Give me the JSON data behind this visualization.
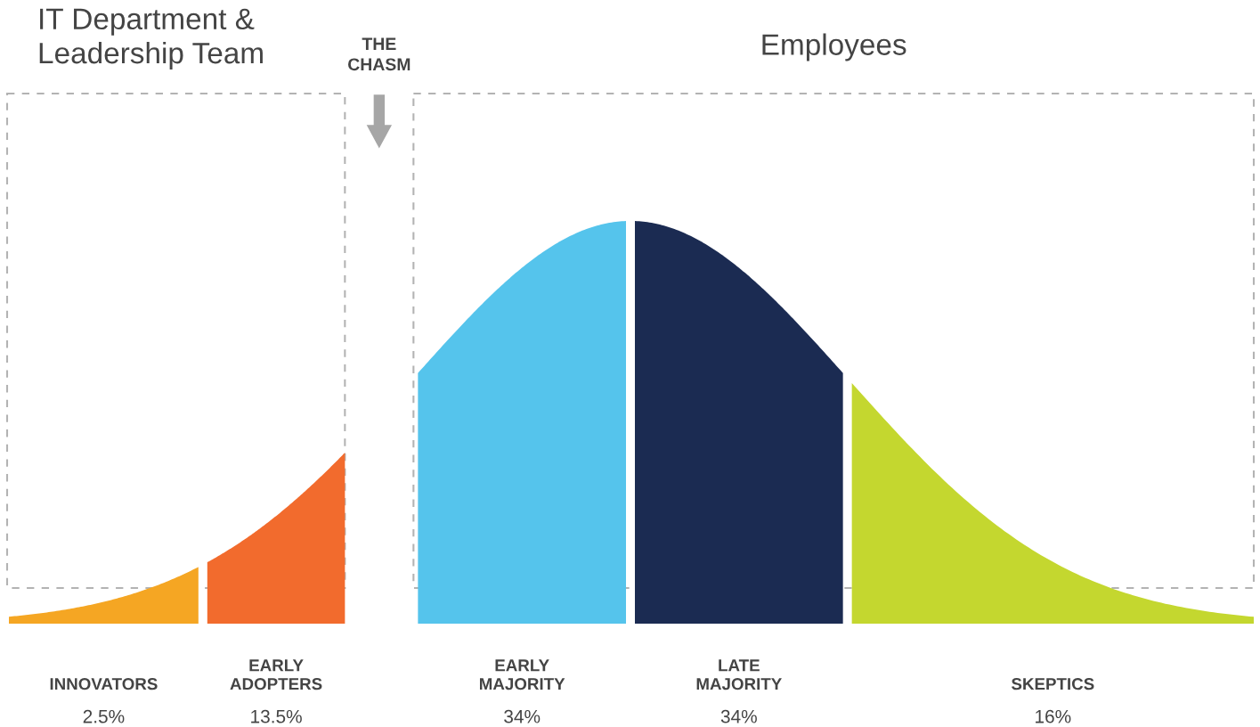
{
  "chart_data": {
    "type": "other",
    "categories": [
      "INNOVATORS",
      "EARLY\nADOPTERS",
      "EARLY\nMAJORITY",
      "LATE\nMAJORITY",
      "SKEPTICS"
    ],
    "values": [
      2.5,
      13.5,
      34,
      34,
      16
    ],
    "value_labels": [
      "2.5%",
      "13.5%",
      "34%",
      "34%",
      "16%"
    ],
    "colors": [
      "#f5a623",
      "#f26b2d",
      "#55c4ec",
      "#1b2b52",
      "#c4d72f"
    ],
    "annotations": [
      "IT Department &\nLeadership Team",
      "THE\nCHASM",
      "Employees"
    ]
  }
}
